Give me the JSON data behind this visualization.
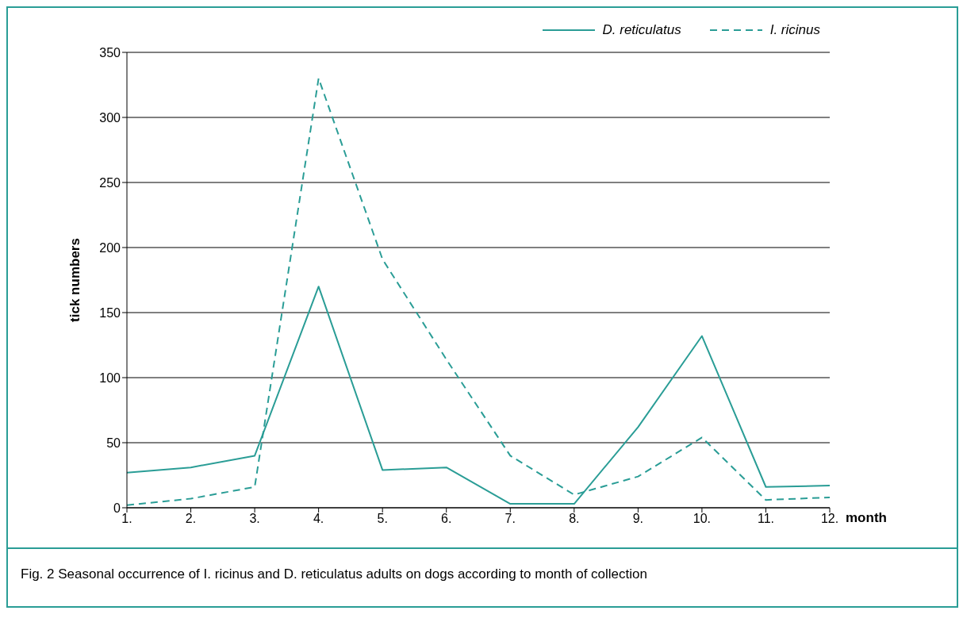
{
  "chart_data": {
    "type": "line",
    "ylabel": "tick numbers",
    "xlabel": "month",
    "categories": [
      "1.",
      "2.",
      "3.",
      "4.",
      "5.",
      "6.",
      "7.",
      "8.",
      "9.",
      "10.",
      "11.",
      "12."
    ],
    "series": [
      {
        "name": "D. reticulatus",
        "color": "#2a9d96",
        "line_style": "solid",
        "values": [
          27,
          31,
          40,
          170,
          29,
          31,
          3,
          3,
          62,
          132,
          16,
          17
        ]
      },
      {
        "name": "I. ricinus",
        "color": "#2a9d96",
        "line_style": "dashed",
        "values": [
          2,
          7,
          16,
          330,
          191,
          114,
          40,
          10,
          24,
          54,
          6,
          8
        ]
      }
    ],
    "ylim": [
      0,
      350
    ],
    "yticks": [
      0,
      50,
      100,
      150,
      200,
      250,
      300,
      350
    ],
    "grid": "y",
    "legend": "top right",
    "annotations": [
      "Fig. 2  Seasonal occurrence of I. ricinus and D. reticulatus adults on dogs according to month of collection"
    ]
  }
}
